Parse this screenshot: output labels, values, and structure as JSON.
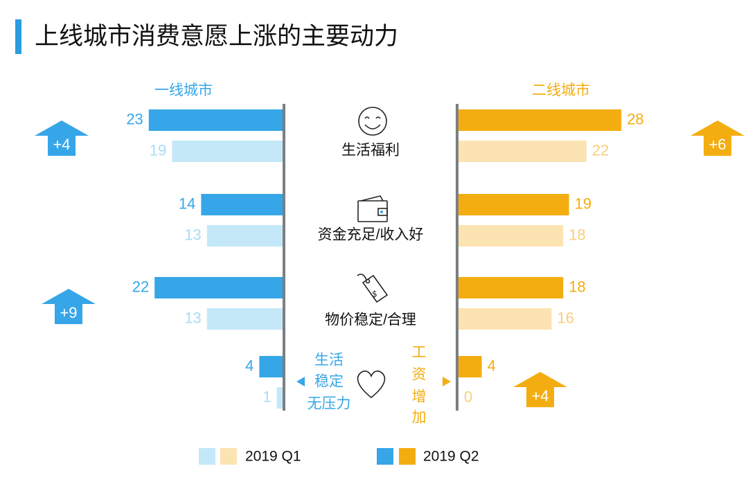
{
  "title": "上线城市消费意愿上涨的主要动力",
  "colors": {
    "accent": "#2c9ce0",
    "tier1_q2": "#36a6e8",
    "tier1_q1": "#c4e8f8",
    "tier2_q2": "#f4ad10",
    "tier2_q1": "#fce3b2",
    "axis": "#7b7f82",
    "text": "#111111"
  },
  "chart_data": {
    "type": "bar",
    "orientation": "horizontal-butterfly",
    "title": "上线城市消费意愿上涨的主要动力",
    "left_panel": "一线城市",
    "right_panel": "二线城市",
    "categories": [
      {
        "label": "生活福利",
        "icon": "smiley-face-icon"
      },
      {
        "label": "资金充足/收入好",
        "icon": "wallet-icon"
      },
      {
        "label": "物价稳定/合理",
        "icon": "price-tag-icon"
      },
      {
        "left_label": "生活稳定无压力",
        "left_label_lines": [
          "生活",
          "稳定",
          "无压力"
        ],
        "right_label": "工资增加",
        "right_label_chars": [
          "工",
          "资",
          "增",
          "加"
        ],
        "icon": "heart-icon"
      }
    ],
    "series": [
      {
        "name": "2019 Q2",
        "city": "一线城市",
        "values": [
          23,
          14,
          22,
          4
        ]
      },
      {
        "name": "2019 Q1",
        "city": "一线城市",
        "values": [
          19,
          13,
          13,
          1
        ]
      },
      {
        "name": "2019 Q2",
        "city": "二线城市",
        "values": [
          28,
          19,
          18,
          4
        ]
      },
      {
        "name": "2019 Q1",
        "city": "二线城市",
        "values": [
          22,
          18,
          16,
          0
        ]
      }
    ],
    "changes": {
      "left": [
        {
          "category_index": 0,
          "label": "+4"
        },
        {
          "category_index": 2,
          "label": "+9"
        }
      ],
      "right": [
        {
          "category_index": 0,
          "label": "+6"
        },
        {
          "category_index": 3,
          "label": "+4"
        }
      ]
    },
    "legend": [
      {
        "label": "2019 Q1",
        "colors": [
          "#c4e8f8",
          "#fce3b2"
        ]
      },
      {
        "label": "2019 Q2",
        "colors": [
          "#36a6e8",
          "#f4ad10"
        ]
      }
    ],
    "xlim": [
      0,
      30
    ]
  }
}
